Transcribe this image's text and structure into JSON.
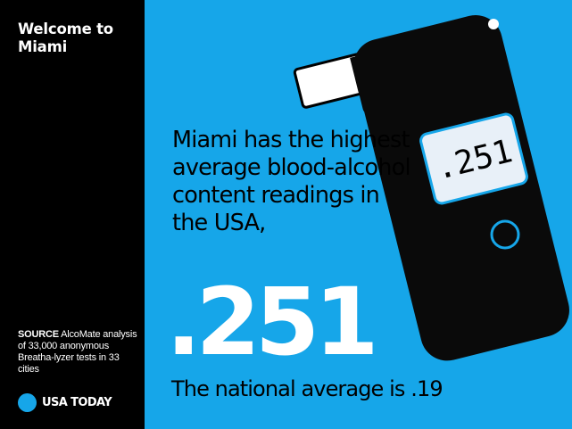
{
  "sidebar": {
    "title": "Welcome to Miami",
    "source_label": "SOURCE",
    "source_text": "AlcoMate analysis of 33,000 anonymous Breatha-lyzer tests in 33 cities"
  },
  "logo": {
    "text": "USA TODAY"
  },
  "headline": "Miami has the highest average blood-alcohol content readings in the USA,",
  "big_number": ".251",
  "national_average": "The national average is .19",
  "breathalyzer": {
    "display_reading": ".251"
  },
  "colors": {
    "background": "#16a6e9",
    "sidebar": "#000000",
    "device": "#0a0a0a",
    "screen": "#e8f0f8",
    "brand_dot": "#16a6e9"
  },
  "icons": [
    "breathalyzer-icon",
    "usa-today-logo-dot"
  ]
}
